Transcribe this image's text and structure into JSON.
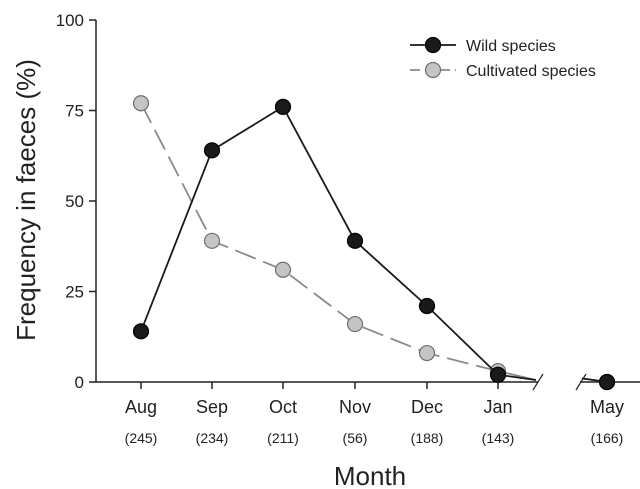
{
  "chart_data": {
    "type": "line",
    "xlabel": "Month",
    "ylabel": "Frequency in faeces (%)",
    "ylim": [
      0,
      100
    ],
    "yticks": [
      "0",
      "25",
      "50",
      "75",
      "100"
    ],
    "categories": [
      "Aug",
      "Sep",
      "Oct",
      "Nov",
      "Dec",
      "Jan",
      "May"
    ],
    "category_notes": [
      "(245)",
      "(234)",
      "(211)",
      "(56)",
      "(188)",
      "(143)",
      "(166)"
    ],
    "axis_break": "between Jan and May",
    "legend_position": "top-right",
    "series": [
      {
        "name": "Wild species",
        "marker_color": "#1a1a1a",
        "line_color": "#1a1a1a",
        "line_style": "solid",
        "values": [
          14,
          64,
          76,
          39,
          21,
          2,
          0
        ]
      },
      {
        "name": "Cultivated species",
        "marker_color": "#c4c4c4",
        "line_color": "#8a8a8a",
        "line_style": "dashed",
        "values": [
          77,
          39,
          31,
          16,
          8,
          3,
          0
        ]
      }
    ]
  }
}
